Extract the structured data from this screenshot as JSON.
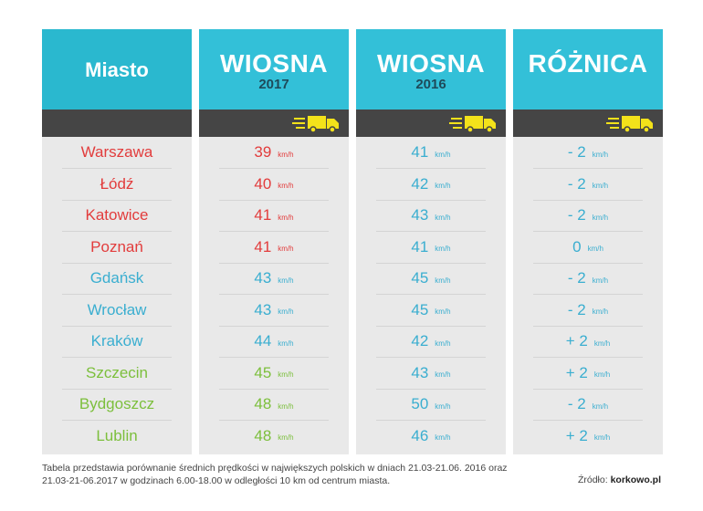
{
  "colors": {
    "header_city": "#2ab8cf",
    "header_data": "#33c0d8",
    "bar": "#454545",
    "column_bg": "#e9e9e9",
    "truck": "#f3e21a",
    "red": "#e23c3c",
    "blue": "#3aaed0",
    "green": "#7cbf3c"
  },
  "headers": {
    "city": "Miasto",
    "spring2017_title": "WIOSNA",
    "spring2017_year": "2017",
    "spring2016_title": "WIOSNA",
    "spring2016_year": "2016",
    "diff_title": "RÓŻNICA"
  },
  "unit": "km/h",
  "chart_data": {
    "type": "table",
    "columns": [
      "Miasto",
      "WIOSNA 2017",
      "WIOSNA 2016",
      "RÓŻNICA"
    ],
    "rows": [
      {
        "city": "Warszawa",
        "v2017": "39",
        "v2016": "41",
        "diff": "- 2",
        "color": "red"
      },
      {
        "city": "Łódź",
        "v2017": "40",
        "v2016": "42",
        "diff": "- 2",
        "color": "red"
      },
      {
        "city": "Katowice",
        "v2017": "41",
        "v2016": "43",
        "diff": "- 2",
        "color": "red"
      },
      {
        "city": "Poznań",
        "v2017": "41",
        "v2016": "41",
        "diff": "0",
        "color": "red"
      },
      {
        "city": "Gdańsk",
        "v2017": "43",
        "v2016": "45",
        "diff": "- 2",
        "color": "blue"
      },
      {
        "city": "Wrocław",
        "v2017": "43",
        "v2016": "45",
        "diff": "- 2",
        "color": "blue"
      },
      {
        "city": "Kraków",
        "v2017": "44",
        "v2016": "42",
        "diff": "+ 2",
        "color": "blue"
      },
      {
        "city": "Szczecin",
        "v2017": "45",
        "v2016": "43",
        "diff": "+ 2",
        "color": "green"
      },
      {
        "city": "Bydgoszcz",
        "v2017": "48",
        "v2016": "50",
        "diff": "- 2",
        "color": "green"
      },
      {
        "city": "Lublin",
        "v2017": "48",
        "v2016": "46",
        "diff": "+ 2",
        "color": "green"
      }
    ]
  },
  "footnote": "Tabela przedstawia porównanie średnich prędkości w największych polskich w dniach 21.03-21.06. 2016 oraz 21.03-21-06.2017 w godzinach 6.00-18.00 w odległości 10 km od centrum miasta.",
  "source_label": "Źródło:",
  "source_value": "korkowo.pl"
}
